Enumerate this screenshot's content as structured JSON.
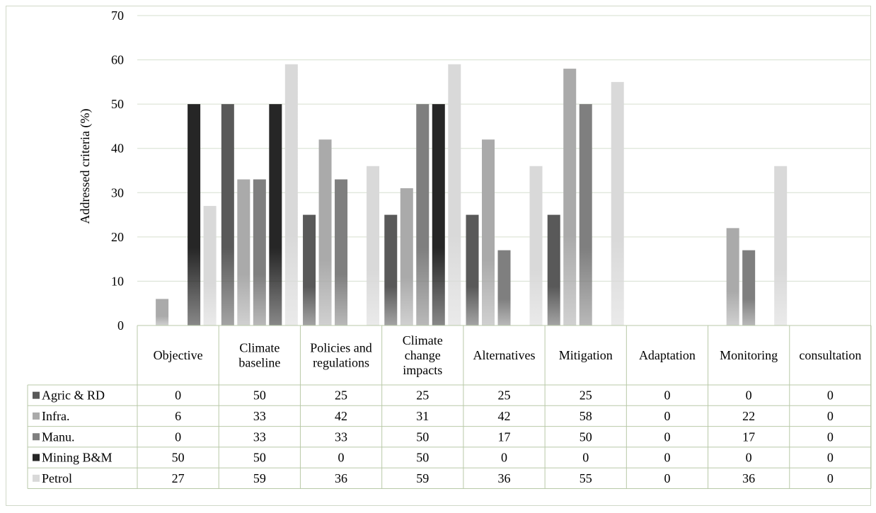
{
  "chart_data": {
    "type": "bar",
    "title": "",
    "xlabel": "",
    "ylabel": "Addressed criteria (%)",
    "ylim": [
      0,
      70
    ],
    "yticks": [
      0,
      10,
      20,
      30,
      40,
      50,
      60,
      70
    ],
    "grid": true,
    "legend": "data-table",
    "categories": [
      [
        "Objective"
      ],
      [
        "Climate",
        "baseline"
      ],
      [
        "Policies and",
        "regulations"
      ],
      [
        "Climate",
        "change",
        "impacts"
      ],
      [
        "Alternatives"
      ],
      [
        "Mitigation"
      ],
      [
        "Adaptation"
      ],
      [
        "Monitoring"
      ],
      [
        "consultation"
      ]
    ],
    "series": [
      {
        "name": "Agric & RD",
        "color": "#595959",
        "values": [
          0,
          50,
          25,
          25,
          25,
          25,
          0,
          0,
          0
        ]
      },
      {
        "name": "Infra.",
        "color": "#aaaaaa",
        "values": [
          6,
          33,
          42,
          31,
          42,
          58,
          0,
          22,
          0
        ]
      },
      {
        "name": "Manu.",
        "color": "#7f7f7f",
        "values": [
          0,
          33,
          33,
          50,
          17,
          50,
          0,
          17,
          0
        ]
      },
      {
        "name": "Mining B&M",
        "color": "#262626",
        "values": [
          50,
          50,
          0,
          50,
          0,
          0,
          0,
          0,
          0
        ]
      },
      {
        "name": "Petrol",
        "color": "#d9d9d9",
        "values": [
          27,
          59,
          36,
          59,
          36,
          55,
          0,
          36,
          0
        ]
      }
    ]
  }
}
